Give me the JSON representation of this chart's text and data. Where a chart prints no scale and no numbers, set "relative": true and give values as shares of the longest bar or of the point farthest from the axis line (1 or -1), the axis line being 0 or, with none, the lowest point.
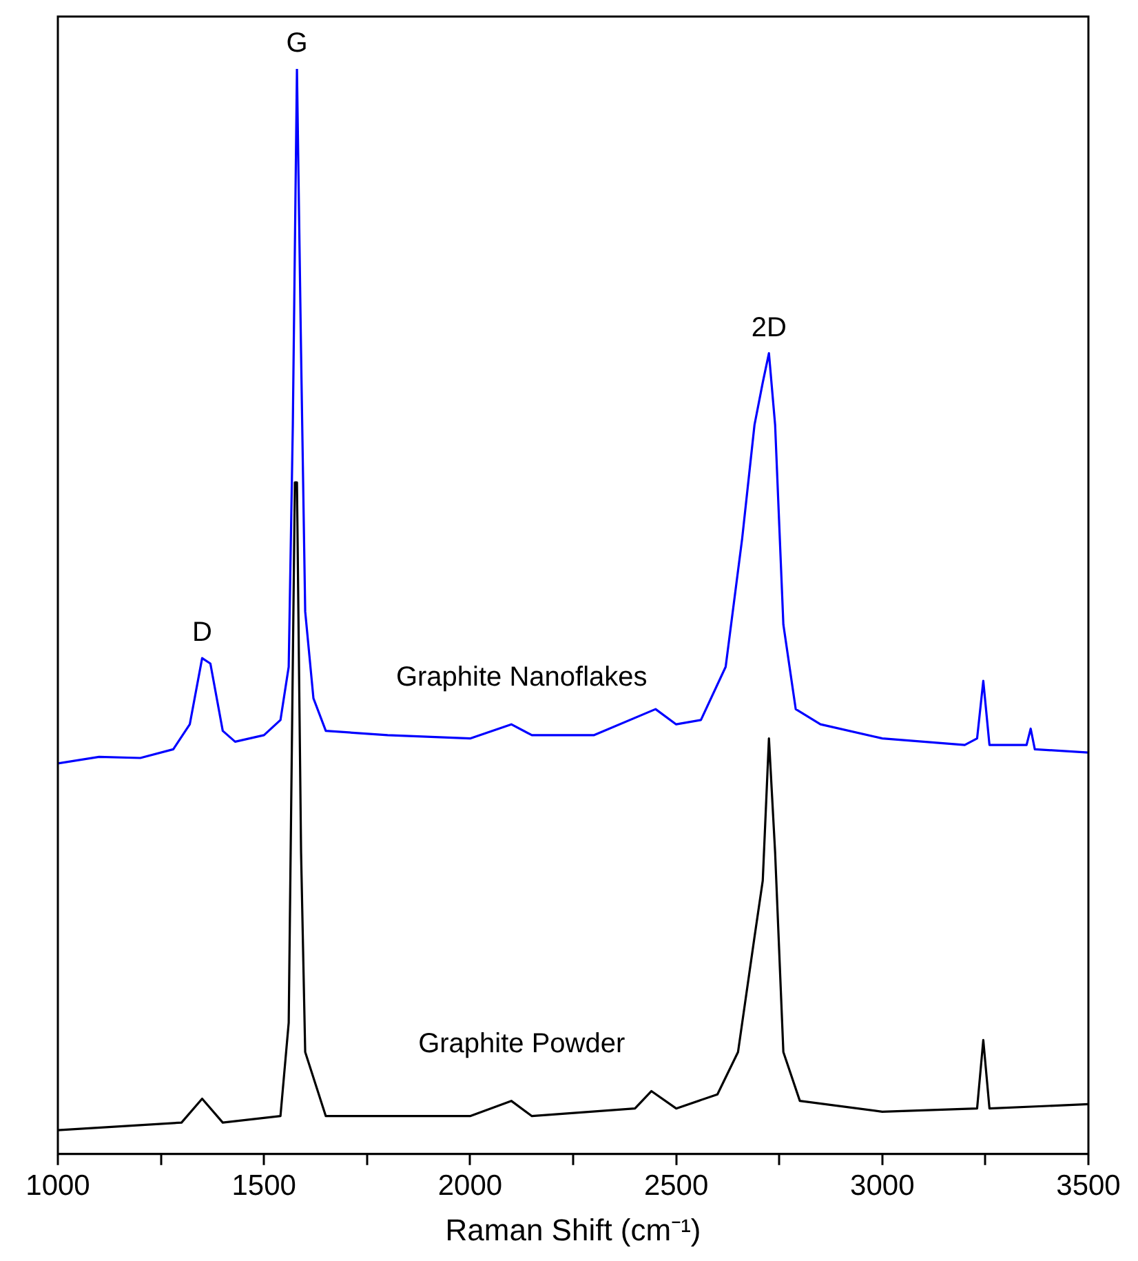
{
  "chart_data": {
    "type": "line",
    "relative": true,
    "xlabel": "Raman Shift (cm⁻¹)",
    "xlim": [
      1000,
      3500
    ],
    "xticks": [
      1000,
      {
        "value": 1250,
        "label": null
      },
      1500,
      {
        "value": 1750,
        "label": null
      },
      2000,
      {
        "value": 2250,
        "label": null
      },
      2500,
      {
        "value": 2750,
        "label": null
      },
      3000,
      {
        "value": 3250,
        "label": null
      },
      3500
    ],
    "tick_labels": "x",
    "grid": false,
    "legend": false,
    "marker": "none",
    "line_style": "solid",
    "series": [
      {
        "name": "Graphite Nanoflakes",
        "color": "#0000ff",
        "x": [
          1000,
          1100,
          1200,
          1280,
          1320,
          1350,
          1370,
          1400,
          1430,
          1500,
          1540,
          1560,
          1570,
          1580,
          1590,
          1600,
          1620,
          1650,
          1800,
          2000,
          2100,
          2150,
          2300,
          2450,
          2500,
          2560,
          2620,
          2660,
          2690,
          2710,
          2725,
          2740,
          2760,
          2790,
          2850,
          3000,
          3200,
          3230,
          3245,
          3260,
          3350,
          3360,
          3370,
          3500
        ],
        "values": [
          0.36,
          0.366,
          0.365,
          0.373,
          0.396,
          0.457,
          0.452,
          0.39,
          0.38,
          0.386,
          0.4,
          0.449,
          0.672,
          1,
          0.738,
          0.5,
          0.42,
          0.39,
          0.386,
          0.383,
          0.396,
          0.386,
          0.386,
          0.41,
          0.396,
          0.4,
          0.449,
          0.567,
          0.672,
          0.711,
          0.738,
          0.672,
          0.488,
          0.41,
          0.396,
          0.383,
          0.377,
          0.383,
          0.436,
          0.377,
          0.377,
          0.392,
          0.373,
          0.37
        ]
      },
      {
        "name": "Graphite Powder",
        "color": "#000000",
        "x": [
          1000,
          1300,
          1350,
          1400,
          1540,
          1560,
          1575,
          1580,
          1590,
          1600,
          1650,
          2000,
          2100,
          2150,
          2400,
          2440,
          2500,
          2600,
          2650,
          2690,
          2710,
          2725,
          2740,
          2760,
          2800,
          3000,
          3230,
          3245,
          3260,
          3500
        ],
        "values": [
          0.022,
          0.029,
          0.051,
          0.029,
          0.035,
          0.121,
          0.619,
          0.619,
          0.278,
          0.094,
          0.035,
          0.035,
          0.049,
          0.035,
          0.042,
          0.058,
          0.042,
          0.055,
          0.094,
          0.2,
          0.252,
          0.383,
          0.278,
          0.094,
          0.049,
          0.039,
          0.042,
          0.105,
          0.042,
          0.046
        ]
      }
    ],
    "annotations": [
      {
        "text": "D",
        "x": 1350,
        "y": 0.457
      },
      {
        "text": "G",
        "x": 1580,
        "y": 1
      },
      {
        "text": "2D",
        "x": 2725,
        "y": 0.738
      }
    ]
  }
}
